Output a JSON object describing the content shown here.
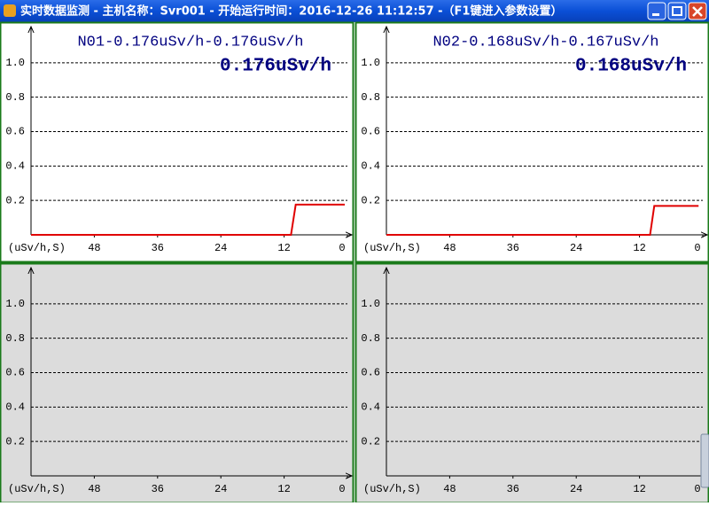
{
  "window": {
    "title": "实时数据监测 - 主机名称：Svr001 - 开始运行时间：2016-12-26 11:12:57 -（F1键进入参数设置）"
  },
  "chart_data": [
    {
      "type": "line",
      "title": "N01-0.176uSv/h-0.176uSv/h",
      "value_text": "0.176uSv/h",
      "x_label": "(uSv/h,S)",
      "background": "#ffffff",
      "xlim": [
        60,
        0
      ],
      "xticks": [
        48,
        36,
        24,
        12,
        0
      ],
      "ylim": [
        0,
        1.2
      ],
      "yticks": [
        0.2,
        0.4,
        0.6,
        0.8,
        {
          "value": 1,
          "label": "1.0"
        }
      ],
      "grid": true,
      "series": [
        {
          "color": "#e00000",
          "x": [
            60,
            10.7,
            9.8,
            0.5
          ],
          "values": [
            0,
            0,
            0.176,
            0.176
          ]
        }
      ]
    },
    {
      "type": "line",
      "title": "N02-0.168uSv/h-0.167uSv/h",
      "value_text": "0.168uSv/h",
      "x_label": "(uSv/h,S)",
      "background": "#ffffff",
      "xlim": [
        60,
        0
      ],
      "xticks": [
        48,
        36,
        24,
        12,
        0
      ],
      "ylim": [
        0,
        1.2
      ],
      "yticks": [
        0.2,
        0.4,
        0.6,
        0.8,
        {
          "value": 1,
          "label": "1.0"
        }
      ],
      "grid": true,
      "series": [
        {
          "color": "#e00000",
          "x": [
            60,
            10,
            9.2,
            0.8
          ],
          "values": [
            0,
            0,
            0.168,
            0.168
          ]
        }
      ]
    },
    {
      "type": "line",
      "x_label": "(uSv/h,S)",
      "background": "#dcdcdc",
      "xlim": [
        60,
        0
      ],
      "xticks": [
        48,
        36,
        24,
        12,
        0
      ],
      "ylim": [
        0,
        1.2
      ],
      "yticks": [
        0.2,
        0.4,
        0.6,
        0.8,
        {
          "value": 1,
          "label": "1.0"
        }
      ],
      "grid": true,
      "series": []
    },
    {
      "type": "line",
      "x_label": "(uSv/h,S)",
      "background": "#dcdcdc",
      "xlim": [
        60,
        0
      ],
      "xticks": [
        48,
        36,
        24,
        12,
        0
      ],
      "ylim": [
        0,
        1.2
      ],
      "yticks": [
        0.2,
        0.4,
        0.6,
        0.8,
        {
          "value": 1,
          "label": "1.0"
        }
      ],
      "grid": true,
      "series": []
    }
  ]
}
